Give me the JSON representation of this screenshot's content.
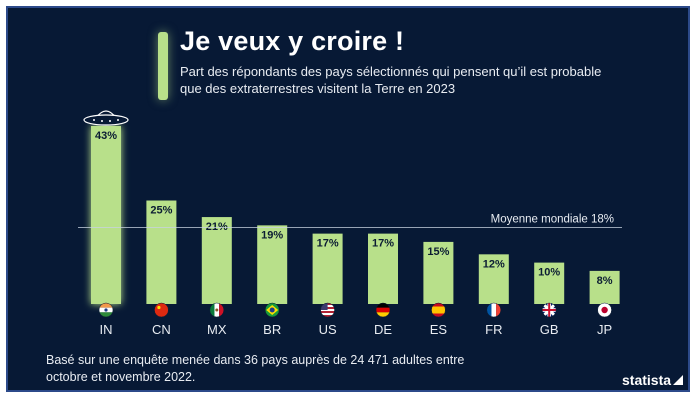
{
  "colors": {
    "background": "#071935",
    "bar": "#b8e08a",
    "text": "#ffffff"
  },
  "brand": "statista",
  "chart_data": {
    "type": "bar",
    "title": "Je veux y croire !",
    "subtitle": "Part des répondants des pays sélectionnés qui pensent qu’il est probable que des extraterrestres visitent la Terre en 2023",
    "categories": [
      "IN",
      "CN",
      "MX",
      "BR",
      "US",
      "DE",
      "ES",
      "FR",
      "GB",
      "JP"
    ],
    "values": [
      43,
      25,
      21,
      19,
      17,
      17,
      15,
      12,
      10,
      8
    ],
    "value_labels": [
      "43%",
      "25%",
      "21%",
      "19%",
      "17%",
      "17%",
      "15%",
      "12%",
      "10%",
      "8%"
    ],
    "reference_line": {
      "value": 18,
      "label": "Moyenne mondiale 18%"
    },
    "xlabel": "",
    "ylabel": "",
    "ylim": [
      0,
      43
    ],
    "grid": false,
    "legend": "none",
    "annotation_icons": [
      "ufo-icon"
    ],
    "flag_icons": [
      "india-flag-icon",
      "china-flag-icon",
      "mexico-flag-icon",
      "brazil-flag-icon",
      "usa-flag-icon",
      "germany-flag-icon",
      "spain-flag-icon",
      "france-flag-icon",
      "uk-flag-icon",
      "japan-flag-icon"
    ]
  },
  "footnote": "Basé sur une enquête menée dans 36 pays auprès de 24 471 adultes entre octobre et novembre 2022."
}
